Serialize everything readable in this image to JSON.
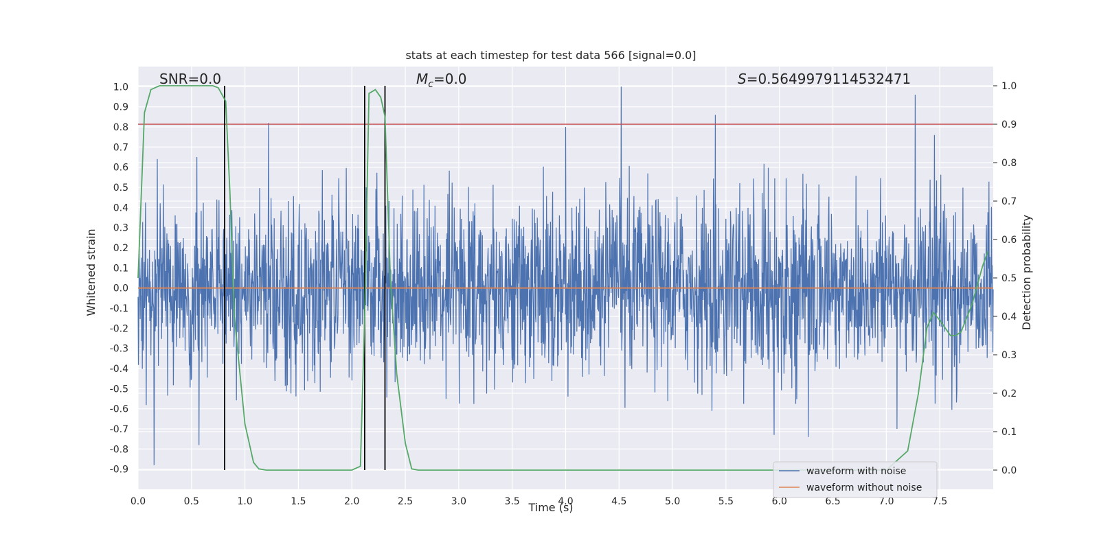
{
  "chart_data": {
    "type": "line",
    "title": "stats at each timestep for test data 566 [signal=0.0]",
    "xlabel": "Time (s)",
    "ylabel": "Whitened strain",
    "ylabel_right": "Detection probability",
    "xlim": [
      0.0,
      8.0
    ],
    "ylim": [
      -1.0,
      1.1
    ],
    "ylim_right": [
      -0.05,
      1.05
    ],
    "x_ticks": [
      "0.0",
      "0.5",
      "1.0",
      "1.5",
      "2.0",
      "2.5",
      "3.0",
      "3.5",
      "4.0",
      "4.5",
      "5.0",
      "5.5",
      "6.0",
      "6.5",
      "7.0",
      "7.5"
    ],
    "y_ticks": [
      "1.0",
      "0.9",
      "0.8",
      "0.7",
      "0.6",
      "0.5",
      "0.4",
      "0.3",
      "0.2",
      "0.1",
      "0.0",
      "-0.1",
      "-0.2",
      "-0.3",
      "-0.4",
      "-0.5",
      "-0.6",
      "-0.7",
      "-0.8",
      "-0.9"
    ],
    "y_ticks_right": [
      "1.0",
      "0.9",
      "0.8",
      "0.7",
      "0.6",
      "0.5",
      "0.4",
      "0.3",
      "0.2",
      "0.1",
      "0.0"
    ],
    "grid": true,
    "annotations": {
      "snr": "SNR=0.0",
      "mc_symbol": "M",
      "mc_sub": "c",
      "mc_value": "=0.0",
      "s_symbol": "S",
      "s_value": "=0.5649979114532471"
    },
    "threshold_right": 0.9,
    "vertical_lines_x": [
      0.81,
      2.12,
      2.31
    ],
    "noise": {
      "peaks_positive": [
        [
          0.18,
          0.64
        ],
        [
          0.55,
          0.65
        ],
        [
          1.22,
          0.82
        ],
        [
          4.0,
          0.8
        ],
        [
          4.52,
          1.0
        ],
        [
          5.4,
          0.86
        ],
        [
          7.27,
          0.96
        ],
        [
          7.45,
          0.76
        ]
      ],
      "peaks_negative": [
        [
          0.15,
          -0.88
        ],
        [
          0.57,
          -0.78
        ],
        [
          5.95,
          -0.73
        ],
        [
          6.27,
          -0.74
        ],
        [
          7.1,
          -0.7
        ]
      ],
      "typical_amplitude": 0.35
    },
    "series": [
      {
        "name": "waveform with noise",
        "color": "#4c72b0",
        "type": "noise"
      },
      {
        "name": "waveform without noise",
        "color": "#dd8452",
        "x": [
          0.0,
          8.0
        ],
        "values": [
          0.0,
          0.0
        ]
      },
      {
        "name": "detection probability",
        "color": "#55a868",
        "axis": "right",
        "x": [
          0.0,
          0.06,
          0.12,
          0.2,
          0.3,
          0.5,
          0.7,
          0.75,
          0.82,
          0.86,
          0.9,
          1.0,
          1.08,
          1.13,
          1.2,
          1.5,
          1.8,
          2.0,
          2.08,
          2.12,
          2.16,
          2.22,
          2.27,
          2.31,
          2.36,
          2.42,
          2.5,
          2.56,
          2.62,
          3.0,
          4.0,
          5.0,
          6.0,
          7.0,
          7.2,
          7.3,
          7.38,
          7.44,
          7.5,
          7.6,
          7.65,
          7.7,
          7.8,
          7.9,
          7.95
        ],
        "values": [
          0.5,
          0.93,
          0.99,
          1.0,
          1.0,
          1.0,
          1.0,
          0.995,
          0.96,
          0.72,
          0.4,
          0.12,
          0.02,
          0.003,
          0.0,
          0.0,
          0.0,
          0.0,
          0.01,
          0.4,
          0.98,
          0.99,
          0.97,
          0.92,
          0.5,
          0.25,
          0.07,
          0.003,
          0.0,
          0.0,
          0.0,
          0.0,
          0.0,
          0.0,
          0.05,
          0.2,
          0.37,
          0.41,
          0.39,
          0.35,
          0.35,
          0.36,
          0.43,
          0.53,
          0.57
        ]
      }
    ],
    "legend": {
      "position": "lower-right",
      "entries": [
        {
          "label": "waveform with noise",
          "color": "#4c72b0"
        },
        {
          "label": "waveform without noise",
          "color": "#dd8452"
        }
      ]
    }
  },
  "colors": {
    "axes_bg": "#eaeaf2",
    "grid": "#ffffff",
    "threshold": "#c44e52",
    "vline": "#000000"
  }
}
